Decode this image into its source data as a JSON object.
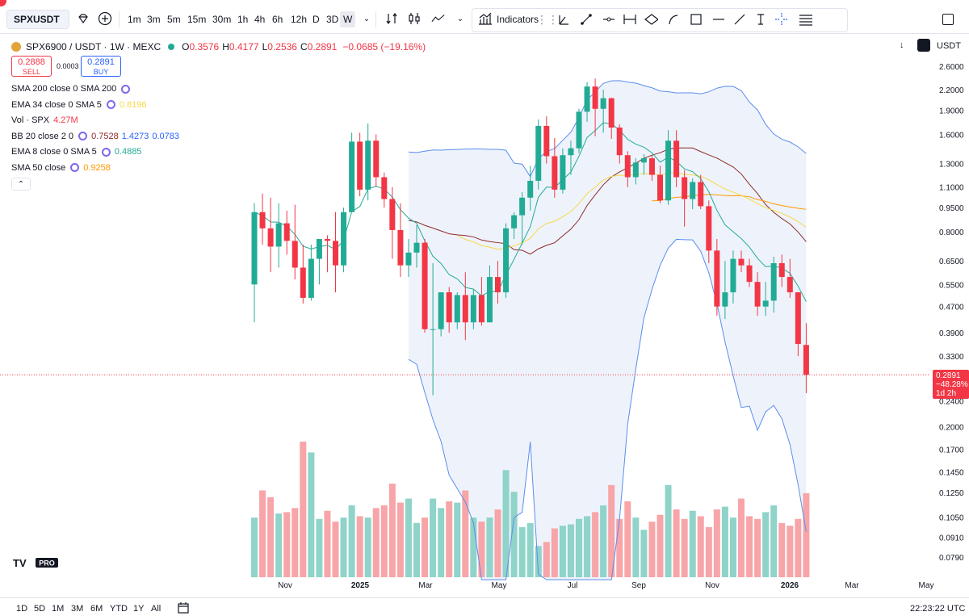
{
  "toolbar": {
    "symbol": "SPXUSDT",
    "timeframes": [
      "1m",
      "3m",
      "5m",
      "15m",
      "30m",
      "1h",
      "4h",
      "6h",
      "12h",
      "D",
      "3D",
      "W"
    ],
    "active_timeframe": "W",
    "indicators_label": "Indicators"
  },
  "legend": {
    "title": "SPX6900 / USDT · 1W · MEXC",
    "ohlc": [
      {
        "label": "O",
        "value": "0.3576"
      },
      {
        "label": "H",
        "value": "0.4177"
      },
      {
        "label": "L",
        "value": "0.2536"
      },
      {
        "label": "C",
        "value": "0.2891"
      }
    ],
    "change": "−0.0685 (−19.16%)",
    "sell_price": "0.2888",
    "sell_label": "SELL",
    "spread": "0.0003",
    "buy_price": "0.2891",
    "buy_label": "BUY",
    "indicators": [
      {
        "name": "SMA 200 close 0 SMA 200",
        "values": [],
        "colors": []
      },
      {
        "name": "EMA 34 close 0 SMA 5",
        "values": [
          "0.8196"
        ],
        "colors": [
          "#f5d949"
        ]
      },
      {
        "name": "Vol · SPX",
        "values": [
          "4.27M"
        ],
        "colors": [
          "#f23645"
        ]
      },
      {
        "name": "BB 20 close 2 0",
        "values": [
          "0.7528",
          "1.4273",
          "0.0783"
        ],
        "colors": [
          "#8e2a2a",
          "#2962ff",
          "#2962ff"
        ]
      },
      {
        "name": "EMA 8 close 0 SMA 5",
        "values": [
          "0.4885"
        ],
        "colors": [
          "#22ab94"
        ]
      },
      {
        "name": "SMA 50 close",
        "values": [
          "0.9258"
        ],
        "colors": [
          "#ff9800"
        ]
      }
    ]
  },
  "axis": {
    "currency": "USDT",
    "price_labels": [
      "2.6000",
      "2.2000",
      "1.9000",
      "1.6000",
      "1.3000",
      "1.1000",
      "0.9500",
      "0.8000",
      "0.6500",
      "0.5500",
      "0.4700",
      "0.3900",
      "0.3300",
      "0.2400",
      "0.2000",
      "0.1700",
      "0.1450",
      "0.1250",
      "0.1050",
      "0.0910",
      "0.0790"
    ],
    "last_price": "0.2891",
    "last_change": "−48.28%",
    "countdown": "1d 2h"
  },
  "time_axis": [
    "Nov",
    "2025",
    "Mar",
    "May",
    "Jul",
    "Sep",
    "Nov",
    "2026",
    "Mar",
    "May"
  ],
  "bottom": {
    "ranges": [
      "1D",
      "5D",
      "1M",
      "3M",
      "6M",
      "YTD",
      "1Y",
      "All"
    ],
    "clock": "22:23:22 UTC"
  },
  "logo": {
    "text": "TV",
    "badge": "PRO"
  },
  "colors": {
    "up": "#22ab94",
    "down": "#f23645",
    "up_vol": "#8fd3c9",
    "down_vol": "#f7a5a8",
    "bb_fill": "#eef3fb",
    "bb_line": "#2962ff",
    "ema8": "#22ab94",
    "ema34": "#f5d949",
    "sma50": "#ff9800",
    "bb_basis": "#8e2a2a"
  },
  "chart_data": {
    "type": "candlestick",
    "interval": "1W",
    "log_scale": true,
    "candles": [
      {
        "o": 0.55,
        "h": 0.98,
        "l": 0.42,
        "c": 0.92
      },
      {
        "o": 0.92,
        "h": 1.05,
        "l": 0.73,
        "c": 0.82
      },
      {
        "o": 0.82,
        "h": 1.02,
        "l": 0.6,
        "c": 0.72
      },
      {
        "o": 0.72,
        "h": 0.98,
        "l": 0.62,
        "c": 0.85
      },
      {
        "o": 0.85,
        "h": 0.93,
        "l": 0.68,
        "c": 0.75
      },
      {
        "o": 0.75,
        "h": 0.97,
        "l": 0.57,
        "c": 0.62
      },
      {
        "o": 0.62,
        "h": 0.73,
        "l": 0.48,
        "c": 0.5
      },
      {
        "o": 0.5,
        "h": 0.73,
        "l": 0.49,
        "c": 0.66
      },
      {
        "o": 0.66,
        "h": 0.76,
        "l": 0.55,
        "c": 0.76
      },
      {
        "o": 0.76,
        "h": 0.78,
        "l": 0.6,
        "c": 0.75
      },
      {
        "o": 0.75,
        "h": 0.92,
        "l": 0.52,
        "c": 0.63
      },
      {
        "o": 0.63,
        "h": 0.95,
        "l": 0.6,
        "c": 0.92
      },
      {
        "o": 0.92,
        "h": 1.62,
        "l": 0.92,
        "c": 1.52
      },
      {
        "o": 1.52,
        "h": 1.62,
        "l": 1.03,
        "c": 1.08
      },
      {
        "o": 1.08,
        "h": 1.73,
        "l": 1.0,
        "c": 1.53
      },
      {
        "o": 1.53,
        "h": 1.6,
        "l": 1.1,
        "c": 1.18
      },
      {
        "o": 1.18,
        "h": 1.22,
        "l": 0.95,
        "c": 1.01
      },
      {
        "o": 1.01,
        "h": 1.1,
        "l": 0.66,
        "c": 0.81
      },
      {
        "o": 0.81,
        "h": 0.98,
        "l": 0.58,
        "c": 0.63
      },
      {
        "o": 0.63,
        "h": 0.76,
        "l": 0.58,
        "c": 0.69
      },
      {
        "o": 0.69,
        "h": 0.84,
        "l": 0.62,
        "c": 0.74
      },
      {
        "o": 0.74,
        "h": 0.76,
        "l": 0.39,
        "c": 0.4
      },
      {
        "o": 0.4,
        "h": 0.64,
        "l": 0.25,
        "c": 0.4
      },
      {
        "o": 0.4,
        "h": 0.5,
        "l": 0.38,
        "c": 0.52
      },
      {
        "o": 0.52,
        "h": 0.54,
        "l": 0.39,
        "c": 0.42
      },
      {
        "o": 0.42,
        "h": 0.52,
        "l": 0.4,
        "c": 0.51
      },
      {
        "o": 0.51,
        "h": 0.6,
        "l": 0.37,
        "c": 0.42
      },
      {
        "o": 0.42,
        "h": 0.53,
        "l": 0.4,
        "c": 0.51
      },
      {
        "o": 0.51,
        "h": 0.58,
        "l": 0.41,
        "c": 0.42
      },
      {
        "o": 0.42,
        "h": 0.63,
        "l": 0.42,
        "c": 0.58
      },
      {
        "o": 0.58,
        "h": 0.65,
        "l": 0.48,
        "c": 0.52
      },
      {
        "o": 0.52,
        "h": 0.85,
        "l": 0.5,
        "c": 0.82
      },
      {
        "o": 0.82,
        "h": 0.92,
        "l": 0.76,
        "c": 0.9
      },
      {
        "o": 0.9,
        "h": 1.06,
        "l": 0.73,
        "c": 1.02
      },
      {
        "o": 1.02,
        "h": 1.28,
        "l": 0.93,
        "c": 1.15
      },
      {
        "o": 1.15,
        "h": 1.78,
        "l": 1.08,
        "c": 1.7
      },
      {
        "o": 1.7,
        "h": 1.82,
        "l": 1.3,
        "c": 1.37
      },
      {
        "o": 1.37,
        "h": 1.56,
        "l": 1.02,
        "c": 1.08
      },
      {
        "o": 1.08,
        "h": 1.45,
        "l": 1.05,
        "c": 1.38
      },
      {
        "o": 1.38,
        "h": 1.53,
        "l": 1.2,
        "c": 1.45
      },
      {
        "o": 1.45,
        "h": 1.92,
        "l": 1.4,
        "c": 1.88
      },
      {
        "o": 1.88,
        "h": 2.32,
        "l": 1.75,
        "c": 2.25
      },
      {
        "o": 2.25,
        "h": 2.38,
        "l": 1.58,
        "c": 1.92
      },
      {
        "o": 1.92,
        "h": 2.2,
        "l": 1.62,
        "c": 2.07
      },
      {
        "o": 2.07,
        "h": 2.08,
        "l": 1.55,
        "c": 1.68
      },
      {
        "o": 1.68,
        "h": 1.72,
        "l": 1.3,
        "c": 1.38
      },
      {
        "o": 1.38,
        "h": 1.42,
        "l": 1.1,
        "c": 1.18
      },
      {
        "o": 1.18,
        "h": 1.35,
        "l": 1.12,
        "c": 1.31
      },
      {
        "o": 1.31,
        "h": 1.39,
        "l": 1.2,
        "c": 1.35
      },
      {
        "o": 1.35,
        "h": 1.38,
        "l": 1.15,
        "c": 1.2
      },
      {
        "o": 1.2,
        "h": 1.28,
        "l": 0.98,
        "c": 1.0
      },
      {
        "o": 1.0,
        "h": 1.65,
        "l": 0.97,
        "c": 1.53
      },
      {
        "o": 1.53,
        "h": 1.65,
        "l": 1.1,
        "c": 1.18
      },
      {
        "o": 1.18,
        "h": 1.24,
        "l": 0.83,
        "c": 1.01
      },
      {
        "o": 1.01,
        "h": 1.17,
        "l": 0.94,
        "c": 1.14
      },
      {
        "o": 1.14,
        "h": 1.2,
        "l": 0.94,
        "c": 0.96
      },
      {
        "o": 0.96,
        "h": 1.0,
        "l": 0.64,
        "c": 0.7
      },
      {
        "o": 0.7,
        "h": 0.76,
        "l": 0.44,
        "c": 0.47
      },
      {
        "o": 0.47,
        "h": 0.65,
        "l": 0.43,
        "c": 0.52
      },
      {
        "o": 0.52,
        "h": 0.7,
        "l": 0.48,
        "c": 0.66
      },
      {
        "o": 0.66,
        "h": 0.7,
        "l": 0.6,
        "c": 0.63
      },
      {
        "o": 0.63,
        "h": 0.66,
        "l": 0.54,
        "c": 0.56
      },
      {
        "o": 0.56,
        "h": 0.6,
        "l": 0.44,
        "c": 0.47
      },
      {
        "o": 0.47,
        "h": 0.56,
        "l": 0.44,
        "c": 0.49
      },
      {
        "o": 0.49,
        "h": 0.67,
        "l": 0.45,
        "c": 0.64
      },
      {
        "o": 0.64,
        "h": 0.68,
        "l": 0.54,
        "c": 0.58
      },
      {
        "o": 0.58,
        "h": 0.66,
        "l": 0.5,
        "c": 0.52
      },
      {
        "o": 0.52,
        "h": 0.52,
        "l": 0.33,
        "c": 0.36
      },
      {
        "o": 0.3576,
        "h": 0.4177,
        "l": 0.2536,
        "c": 0.2891
      }
    ],
    "volume_relative": [
      0.44,
      0.64,
      0.59,
      0.47,
      0.48,
      0.51,
      1.0,
      0.92,
      0.43,
      0.49,
      0.41,
      0.44,
      0.53,
      0.45,
      0.44,
      0.51,
      0.53,
      0.69,
      0.55,
      0.58,
      0.4,
      0.44,
      0.58,
      0.51,
      0.56,
      0.55,
      0.64,
      0.44,
      0.41,
      0.44,
      0.5,
      0.79,
      0.63,
      0.37,
      0.4,
      0.23,
      0.26,
      0.36,
      0.38,
      0.39,
      0.43,
      0.45,
      0.48,
      0.53,
      0.68,
      0.43,
      0.56,
      0.44,
      0.35,
      0.41,
      0.46,
      0.68,
      0.5,
      0.43,
      0.49,
      0.45,
      0.37,
      0.5,
      0.52,
      0.44,
      0.58,
      0.45,
      0.43,
      0.48,
      0.53,
      0.4,
      0.38,
      0.43,
      0.62
    ]
  }
}
